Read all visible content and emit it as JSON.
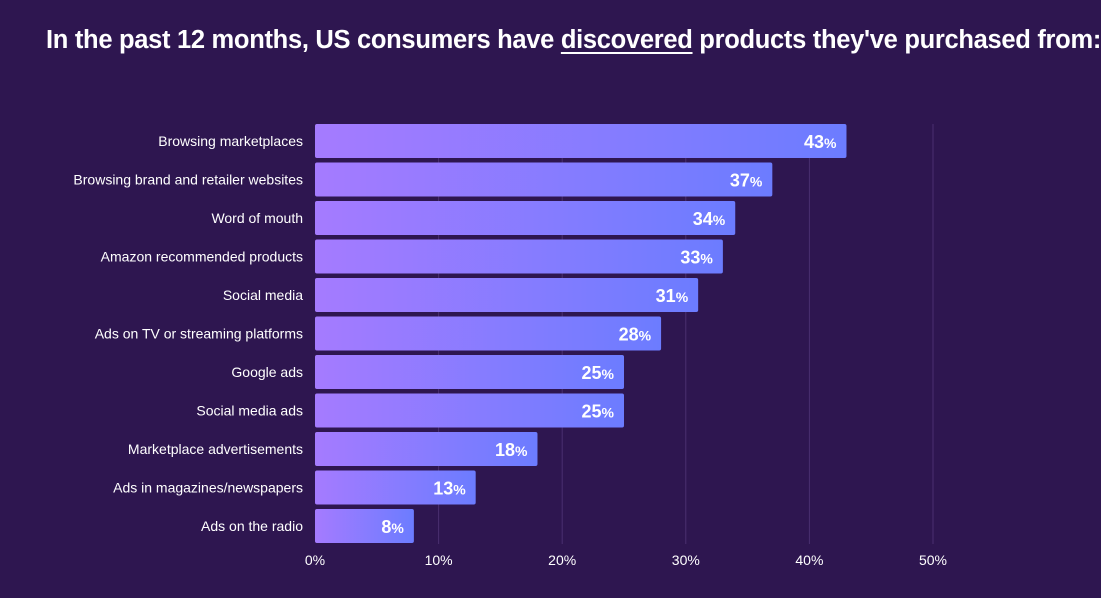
{
  "header": {
    "title_pre": "In the past 12 months, US consumers have ",
    "title_emph": "discovered",
    "title_post": " products they've purchased from:"
  },
  "colors": {
    "background": "#2e1650",
    "bar_start": "#a57bff",
    "bar_end": "#6c7cff",
    "gridline": "#4a2f70"
  },
  "chart_data": {
    "type": "bar",
    "orientation": "horizontal",
    "title": "In the past 12 months, US consumers have discovered products they've purchased from:",
    "categories": [
      "Browsing marketplaces",
      "Browsing brand and retailer websites",
      "Word of mouth",
      "Amazon recommended products",
      "Social media",
      "Ads on TV or streaming platforms",
      "Google ads",
      "Social media ads",
      "Marketplace advertisements",
      "Ads in magazines/newspapers",
      "Ads on the radio"
    ],
    "values": [
      43,
      37,
      34,
      33,
      31,
      28,
      25,
      25,
      18,
      13,
      8
    ],
    "value_suffix": "%",
    "xlim": [
      0,
      50
    ],
    "xticks": [
      0,
      10,
      20,
      30,
      40,
      50
    ],
    "xtick_labels": [
      "0%",
      "10%",
      "20%",
      "30%",
      "40%",
      "50%"
    ],
    "xlabel": "",
    "ylabel": "",
    "grid": true,
    "legend": "none"
  }
}
